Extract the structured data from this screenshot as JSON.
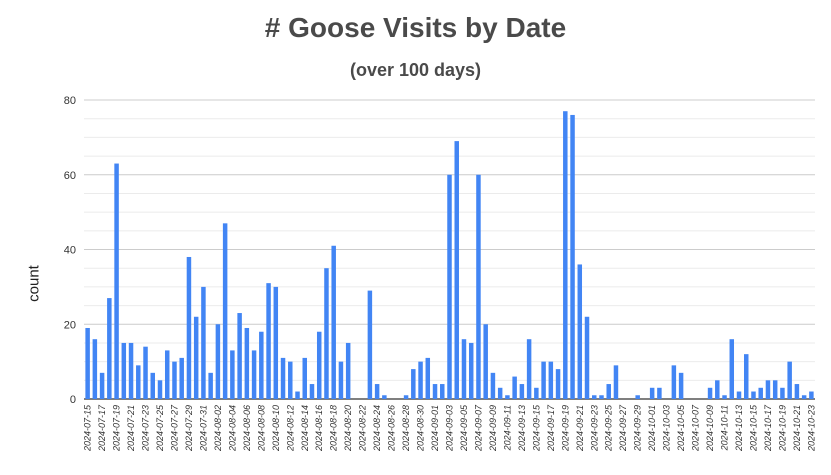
{
  "chart_data": {
    "type": "bar",
    "title": "# Goose Visits by Date",
    "subtitle": "(over 100 days)",
    "xlabel": "",
    "ylabel": "count",
    "ylim": [
      0,
      80
    ],
    "yticks": [
      0,
      20,
      40,
      60,
      80
    ],
    "grid": true,
    "bar_color": "#4285f4",
    "categories": [
      "2024-07-15",
      "2024-07-16",
      "2024-07-17",
      "2024-07-18",
      "2024-07-19",
      "2024-07-20",
      "2024-07-21",
      "2024-07-22",
      "2024-07-23",
      "2024-07-24",
      "2024-07-25",
      "2024-07-26",
      "2024-07-27",
      "2024-07-28",
      "2024-07-29",
      "2024-07-30",
      "2024-07-31",
      "2024-08-01",
      "2024-08-02",
      "2024-08-03",
      "2024-08-04",
      "2024-08-05",
      "2024-08-06",
      "2024-08-07",
      "2024-08-08",
      "2024-08-09",
      "2024-08-10",
      "2024-08-11",
      "2024-08-12",
      "2024-08-13",
      "2024-08-14",
      "2024-08-15",
      "2024-08-16",
      "2024-08-17",
      "2024-08-18",
      "2024-08-19",
      "2024-08-20",
      "2024-08-21",
      "2024-08-22",
      "2024-08-23",
      "2024-08-24",
      "2024-08-25",
      "2024-08-26",
      "2024-08-27",
      "2024-08-28",
      "2024-08-29",
      "2024-08-30",
      "2024-08-31",
      "2024-09-01",
      "2024-09-02",
      "2024-09-03",
      "2024-09-04",
      "2024-09-05",
      "2024-09-06",
      "2024-09-07",
      "2024-09-08",
      "2024-09-09",
      "2024-09-10",
      "2024-09-11",
      "2024-09-12",
      "2024-09-13",
      "2024-09-14",
      "2024-09-15",
      "2024-09-16",
      "2024-09-17",
      "2024-09-18",
      "2024-09-19",
      "2024-09-20",
      "2024-09-21",
      "2024-09-22",
      "2024-09-23",
      "2024-09-24",
      "2024-09-25",
      "2024-09-26",
      "2024-09-27",
      "2024-09-28",
      "2024-09-29",
      "2024-09-30",
      "2024-10-01",
      "2024-10-02",
      "2024-10-03",
      "2024-10-04",
      "2024-10-05",
      "2024-10-06",
      "2024-10-07",
      "2024-10-08",
      "2024-10-09",
      "2024-10-10",
      "2024-10-11",
      "2024-10-12",
      "2024-10-13",
      "2024-10-14",
      "2024-10-15",
      "2024-10-16",
      "2024-10-17",
      "2024-10-18",
      "2024-10-19",
      "2024-10-20",
      "2024-10-21",
      "2024-10-22",
      "2024-10-23"
    ],
    "values": [
      19,
      16,
      7,
      27,
      63,
      15,
      15,
      9,
      14,
      7,
      5,
      13,
      10,
      11,
      38,
      22,
      30,
      7,
      20,
      47,
      13,
      23,
      19,
      13,
      18,
      31,
      30,
      11,
      10,
      2,
      11,
      4,
      18,
      35,
      41,
      10,
      15,
      0,
      0,
      29,
      4,
      1,
      0,
      0,
      1,
      8,
      10,
      11,
      4,
      4,
      60,
      69,
      16,
      15,
      60,
      20,
      7,
      3,
      1,
      6,
      4,
      16,
      3,
      10,
      10,
      8,
      77,
      76,
      36,
      22,
      1,
      1,
      4,
      9,
      0,
      0,
      1,
      0,
      3,
      3,
      0,
      9,
      7,
      0,
      0,
      0,
      3,
      5,
      1,
      16,
      2,
      12,
      2,
      3,
      5,
      5,
      3,
      10,
      4,
      1,
      2
    ]
  }
}
